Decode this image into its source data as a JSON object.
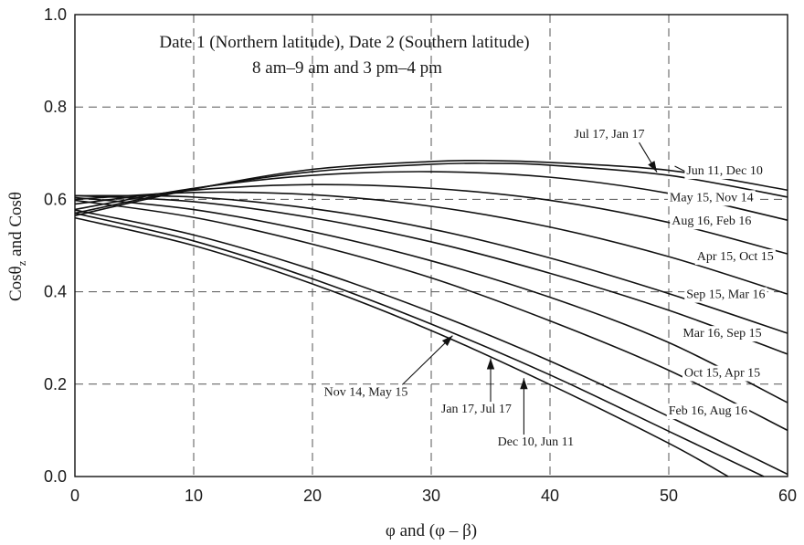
{
  "chart_data": {
    "type": "line",
    "title": "",
    "annotation_lines": [
      "Date 1 (Northern latitude), Date 2 (Southern latitude)",
      "8 am–9 am  and  3 pm–4 pm"
    ],
    "xlabel": "φ and (φ – β)",
    "ylabel_main": "Cosθ",
    "ylabel_sub": "z",
    "ylabel_tail": " and Cosθ",
    "xlim": [
      0,
      60
    ],
    "ylim": [
      0,
      1.0
    ],
    "xticks": [
      0,
      10,
      20,
      30,
      40,
      50,
      60
    ],
    "xtick_labels": [
      "0",
      "10",
      "20",
      "30",
      "40",
      "50",
      "60"
    ],
    "yticks": [
      0,
      0.2,
      0.4,
      0.6,
      0.8,
      1.0
    ],
    "ytick_labels": [
      "0.0",
      "0.2",
      "0.4",
      "0.6",
      "0.8",
      "1.0"
    ],
    "grid": true,
    "series": [
      {
        "name": "Jun 11, Dec 10",
        "x": [
          0,
          10,
          20,
          30,
          35,
          40,
          50,
          60
        ],
        "y": [
          0.565,
          0.622,
          0.665,
          0.682,
          0.684,
          0.68,
          0.663,
          0.62
        ]
      },
      {
        "name": "Jul 17, Jan 17",
        "x": [
          0,
          10,
          20,
          30,
          35,
          40,
          50,
          60
        ],
        "y": [
          0.57,
          0.623,
          0.66,
          0.676,
          0.678,
          0.674,
          0.652,
          0.605
        ]
      },
      {
        "name": "May 15, Nov 14",
        "x": [
          0,
          10,
          20,
          30,
          40,
          50,
          60
        ],
        "y": [
          0.578,
          0.624,
          0.652,
          0.66,
          0.648,
          0.613,
          0.555
        ]
      },
      {
        "name": "Aug 16, Feb 16",
        "x": [
          0,
          10,
          20,
          30,
          40,
          50,
          60
        ],
        "y": [
          0.59,
          0.62,
          0.632,
          0.624,
          0.598,
          0.55,
          0.482
        ]
      },
      {
        "name": "Apr 15, Oct 15",
        "x": [
          0,
          10,
          20,
          30,
          40,
          50,
          60
        ],
        "y": [
          0.6,
          0.615,
          0.61,
          0.585,
          0.54,
          0.476,
          0.395
        ]
      },
      {
        "name": "Sep 15, Mar 16",
        "x": [
          0,
          10,
          20,
          30,
          40,
          50,
          60
        ],
        "y": [
          0.608,
          0.605,
          0.58,
          0.536,
          0.473,
          0.396,
          0.31
        ]
      },
      {
        "name": "Mar 16, Sep 15",
        "x": [
          0,
          10,
          20,
          30,
          40,
          50,
          60
        ],
        "y": [
          0.608,
          0.595,
          0.56,
          0.508,
          0.44,
          0.36,
          0.265
        ]
      },
      {
        "name": "Oct 15, Apr 15",
        "x": [
          0,
          10,
          20,
          30,
          40,
          50,
          60
        ],
        "y": [
          0.604,
          0.578,
          0.53,
          0.467,
          0.388,
          0.29,
          0.16
        ]
      },
      {
        "name": "Feb 16, Aug 16",
        "x": [
          0,
          10,
          20,
          30,
          40,
          50,
          60
        ],
        "y": [
          0.598,
          0.561,
          0.503,
          0.43,
          0.337,
          0.23,
          0.1
        ]
      },
      {
        "name": "Nov 14, May 15",
        "x": [
          0,
          10,
          20,
          30,
          40,
          50,
          60
        ],
        "y": [
          0.577,
          0.523,
          0.448,
          0.356,
          0.25,
          0.13,
          0.005
        ]
      },
      {
        "name": "Jan 17, Jul 17",
        "x": [
          0,
          10,
          20,
          30,
          40,
          50,
          58
        ],
        "y": [
          0.57,
          0.51,
          0.428,
          0.33,
          0.22,
          0.098,
          0.0
        ]
      },
      {
        "name": "Dec 10, Jun 11",
        "x": [
          0,
          10,
          20,
          30,
          40,
          50,
          55
        ],
        "y": [
          0.56,
          0.5,
          0.417,
          0.316,
          0.199,
          0.072,
          0.0
        ]
      }
    ],
    "labels": [
      {
        "text": "Jul 17, Jan 17",
        "series": "Jul 17, Jan 17",
        "at": [
          45,
          0.743
        ],
        "anchor": "middle",
        "pointer_to": [
          49.0,
          0.659
        ],
        "arrow": true
      },
      {
        "text": "Jun 11, Dec 10",
        "series": "Jun 11, Dec 10",
        "at": [
          54.7,
          0.664
        ],
        "anchor": "middle",
        "pointer_to": [
          50.5,
          0.672
        ],
        "arrow": false
      },
      {
        "text": "May 15, Nov 14",
        "series": "May 15, Nov 14",
        "at": [
          53.6,
          0.606
        ],
        "anchor": "middle"
      },
      {
        "text": "Aug 16, Feb 16",
        "series": "Aug 16, Feb 16",
        "at": [
          53.6,
          0.555
        ],
        "anchor": "middle"
      },
      {
        "text": "Apr 15, Oct 15",
        "series": "Apr 15, Oct 15",
        "at": [
          55.6,
          0.478
        ],
        "anchor": "middle"
      },
      {
        "text": "Sep 15, Mar 16",
        "series": "Sep 15, Mar 16",
        "at": [
          54.8,
          0.396
        ],
        "anchor": "middle"
      },
      {
        "text": "Mar 16, Sep 15",
        "series": "Mar 16, Sep 15",
        "at": [
          54.5,
          0.312
        ],
        "anchor": "middle"
      },
      {
        "text": "Oct 15, Apr 15",
        "series": "Oct 15, Apr 15",
        "at": [
          54.5,
          0.226
        ],
        "anchor": "middle"
      },
      {
        "text": "Feb 16, Aug 16",
        "series": "Feb 16, Aug 16",
        "at": [
          53.3,
          0.144
        ],
        "anchor": "middle"
      },
      {
        "text": "Nov 14, May 15",
        "series": "Nov 14, May 15",
        "at": [
          24.5,
          0.185
        ],
        "anchor": "middle",
        "pointer_to": [
          31.8,
          0.305
        ],
        "arrow": true
      },
      {
        "text": "Jan 17, Jul 17",
        "series": "Jan 17, Jul 17",
        "at": [
          33.8,
          0.148
        ],
        "anchor": "middle",
        "pointer_to": [
          35.0,
          0.256
        ],
        "arrow": true
      },
      {
        "text": "Dec 10, Jun 11",
        "series": "Dec 10, Jun 11",
        "at": [
          38.8,
          0.077
        ],
        "anchor": "middle",
        "pointer_to": [
          37.8,
          0.213
        ],
        "arrow": true
      }
    ]
  }
}
